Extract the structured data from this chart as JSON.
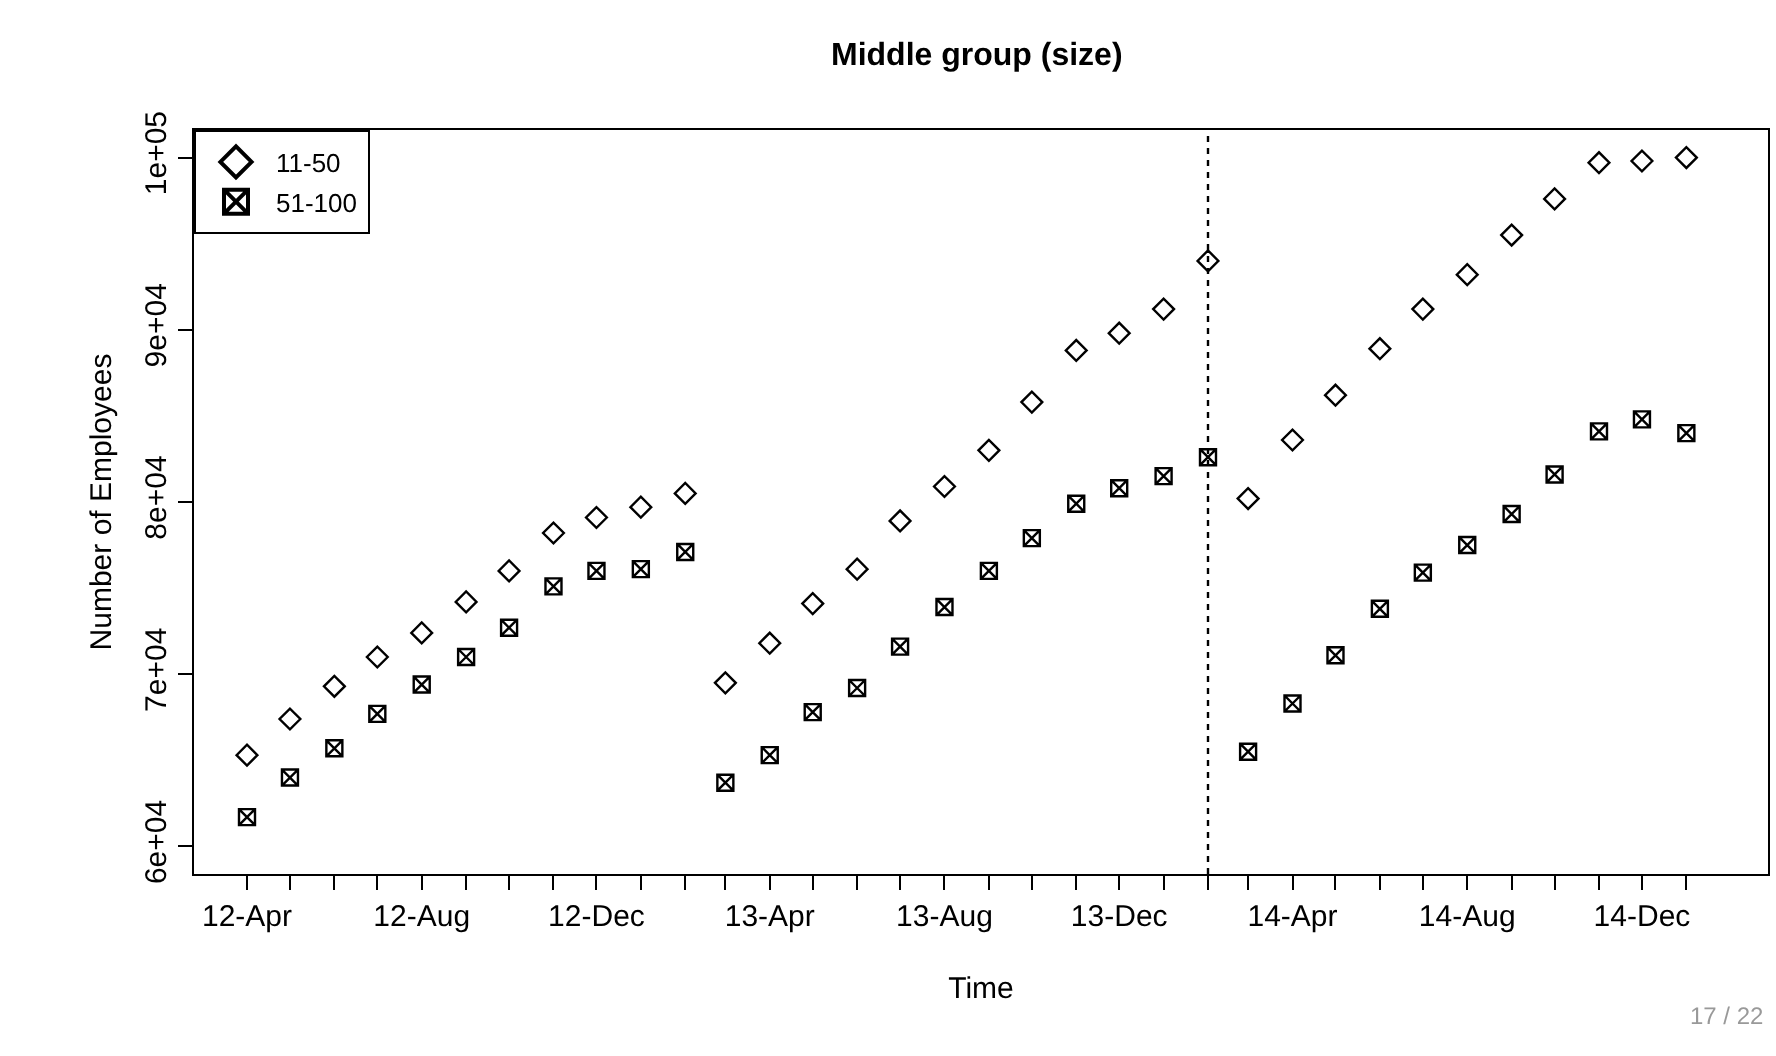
{
  "chart_data": {
    "type": "scatter",
    "title": "Middle group (size)",
    "xlabel": "Time",
    "ylabel": "Number of Employees",
    "x": [
      "2012-04",
      "2012-05",
      "2012-06",
      "2012-07",
      "2012-08",
      "2012-09",
      "2012-10",
      "2012-11",
      "2012-12",
      "2013-01",
      "2013-02",
      "2013-03",
      "2013-04",
      "2013-05",
      "2013-06",
      "2013-07",
      "2013-08",
      "2013-09",
      "2013-10",
      "2013-11",
      "2013-12",
      "2014-01",
      "2014-02",
      "2014-03",
      "2014-04",
      "2014-05",
      "2014-06",
      "2014-07",
      "2014-08",
      "2014-09",
      "2014-10",
      "2014-11",
      "2014-12",
      "2015-01"
    ],
    "series": [
      {
        "name": "11-50",
        "color": "#000000",
        "marker": "diamond",
        "values": [
          65300,
          67400,
          69300,
          71000,
          72400,
          74200,
          76000,
          78200,
          79100,
          79700,
          80500,
          69500,
          71800,
          74100,
          76100,
          78900,
          80900,
          83000,
          85800,
          88800,
          89800,
          91200,
          94000,
          80200,
          83600,
          86200,
          88900,
          91200,
          93200,
          95500,
          97600,
          99700,
          99800,
          100000
        ]
      },
      {
        "name": "51-100",
        "color": "#000000",
        "marker": "cross",
        "values": [
          61700,
          64000,
          65700,
          67700,
          69400,
          71000,
          72700,
          75100,
          76000,
          76100,
          77100,
          63700,
          65300,
          67800,
          69200,
          71600,
          73900,
          76000,
          77900,
          79900,
          80800,
          81500,
          82600,
          65500,
          68300,
          71100,
          73800,
          75900,
          77500,
          79300,
          81600,
          84100,
          84800,
          84000
        ]
      }
    ],
    "xlim": [
      "2012-02-24",
      "2015-02-27"
    ],
    "xticks": [
      {
        "value": "2012-04",
        "label": "12-Apr"
      },
      {
        "value": "2012-05",
        "label": null
      },
      {
        "value": "2012-06",
        "label": null
      },
      {
        "value": "2012-07",
        "label": null
      },
      {
        "value": "2012-08",
        "label": "12-Aug"
      },
      {
        "value": "2012-09",
        "label": null
      },
      {
        "value": "2012-10",
        "label": null
      },
      {
        "value": "2012-11",
        "label": null
      },
      {
        "value": "2012-12",
        "label": "12-Dec"
      },
      {
        "value": "2013-01",
        "label": null
      },
      {
        "value": "2013-02",
        "label": null
      },
      {
        "value": "2013-03",
        "label": null
      },
      {
        "value": "2013-04",
        "label": "13-Apr"
      },
      {
        "value": "2013-05",
        "label": null
      },
      {
        "value": "2013-06",
        "label": null
      },
      {
        "value": "2013-07",
        "label": null
      },
      {
        "value": "2013-08",
        "label": "13-Aug"
      },
      {
        "value": "2013-09",
        "label": null
      },
      {
        "value": "2013-10",
        "label": null
      },
      {
        "value": "2013-11",
        "label": null
      },
      {
        "value": "2013-12",
        "label": "13-Dec"
      },
      {
        "value": "2014-01",
        "label": null
      },
      {
        "value": "2014-02",
        "label": null
      },
      {
        "value": "2014-03",
        "label": null
      },
      {
        "value": "2014-04",
        "label": "14-Apr"
      },
      {
        "value": "2014-05",
        "label": null
      },
      {
        "value": "2014-06",
        "label": null
      },
      {
        "value": "2014-07",
        "label": null
      },
      {
        "value": "2014-08",
        "label": "14-Aug"
      },
      {
        "value": "2014-09",
        "label": null
      },
      {
        "value": "2014-10",
        "label": null
      },
      {
        "value": "2014-11",
        "label": null
      },
      {
        "value": "2014-12",
        "label": "14-Dec"
      },
      {
        "value": "2015-01",
        "label": null
      }
    ],
    "ylim": [
      58400,
      101600
    ],
    "yticks": [
      {
        "value": 60000,
        "label": "6e+04"
      },
      {
        "value": 70000,
        "label": "7e+04"
      },
      {
        "value": 80000,
        "label": "8e+04"
      },
      {
        "value": 90000,
        "label": "9e+04"
      },
      {
        "value": 100000,
        "label": "1e+05"
      }
    ],
    "ref_lines": [
      {
        "axis": "x",
        "value": "2014-02",
        "label": null,
        "line_style": "dotted",
        "color": "#000000"
      }
    ],
    "annotations": [
      "17 / 22"
    ],
    "legend": "top left"
  }
}
